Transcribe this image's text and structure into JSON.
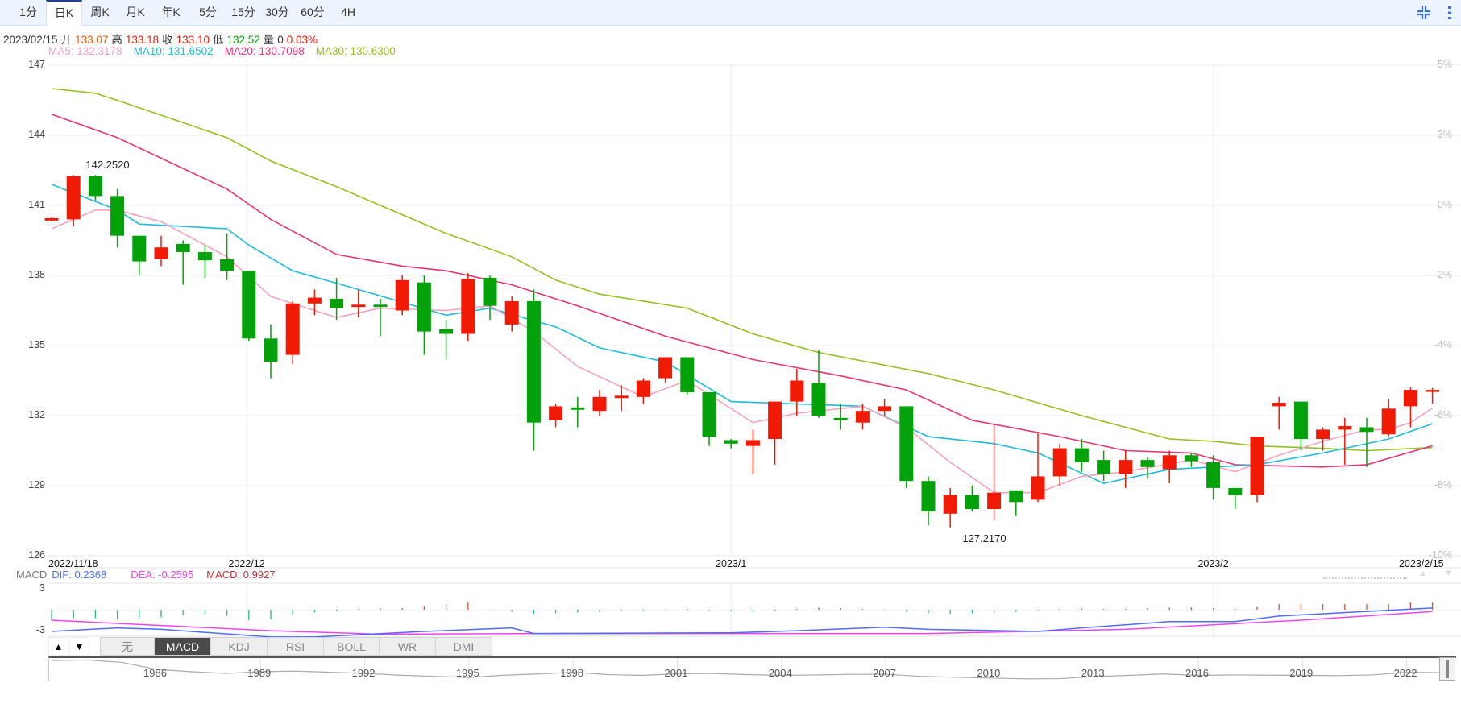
{
  "tabs": [
    "1分",
    "日K",
    "周K",
    "月K",
    "年K",
    "5分",
    "15分",
    "30分",
    "60分",
    "4H"
  ],
  "active_tab": "日K",
  "info": {
    "date": "2023/02/15",
    "open_label": "开",
    "open": "133.07",
    "high_label": "高",
    "high": "133.18",
    "close_label": "收",
    "close": "133.10",
    "low_label": "低",
    "low": "132.52",
    "volume_label": "量",
    "volume": "0",
    "change": "0.03%"
  },
  "ma_legend": {
    "ma5": "MA5: 132.3178",
    "ma10": "MA10: 131.6502",
    "ma20": "MA20: 130.7098",
    "ma30": "MA30: 130.6300"
  },
  "colors": {
    "up": "#f01a05",
    "down": "#04a20a",
    "ma5": "#f5a3bd",
    "ma10": "#1fbcd9",
    "ma20": "#e8356e",
    "ma30": "#94c11f",
    "dif": "#4f6bf7",
    "dea": "#ee44ee",
    "macd": "#c2303a",
    "open": "#f05a00"
  },
  "chart_data": {
    "type": "candlestick",
    "ylim": [
      126,
      147
    ],
    "y_ticks": [
      "147",
      "144",
      "141",
      "138",
      "135",
      "132",
      "129",
      "126"
    ],
    "pct_ticks": [
      "5%",
      "3%",
      "0%",
      "-2%",
      "-4%",
      "-6%",
      "-8%",
      "-10%"
    ],
    "x_labels": [
      "2022/11/18",
      "2022/12",
      "2023/1",
      "2023/2",
      "2023/2/15"
    ],
    "x_label_index": [
      0,
      8.9,
      31,
      53,
      63
    ],
    "annotations": [
      {
        "text": "142.2520",
        "index": 2,
        "value": 142.252
      },
      {
        "text": "127.2170",
        "index": 42,
        "value": 127.217
      }
    ],
    "candles": [
      [
        140.35,
        140.45,
        140.5,
        140.3
      ],
      [
        140.4,
        142.25,
        142.3,
        140.1
      ],
      [
        142.25,
        141.4,
        142.3,
        141.2
      ],
      [
        141.4,
        139.7,
        141.7,
        139.2
      ],
      [
        139.7,
        138.6,
        139.7,
        138.0
      ],
      [
        138.7,
        139.2,
        139.7,
        138.4
      ],
      [
        139.35,
        139.0,
        139.5,
        137.6
      ],
      [
        139.0,
        138.65,
        139.3,
        137.9
      ],
      [
        138.7,
        138.2,
        139.8,
        137.8
      ],
      [
        138.2,
        135.3,
        138.2,
        135.2
      ],
      [
        135.3,
        134.3,
        135.9,
        133.6
      ],
      [
        134.6,
        136.8,
        136.9,
        134.2
      ],
      [
        136.8,
        137.05,
        137.4,
        136.3
      ],
      [
        137.0,
        136.6,
        137.9,
        136.1
      ],
      [
        136.65,
        136.75,
        137.4,
        136.2
      ],
      [
        136.75,
        136.65,
        137.0,
        135.4
      ],
      [
        136.5,
        137.8,
        138.0,
        136.3
      ],
      [
        137.7,
        135.6,
        138.0,
        134.6
      ],
      [
        135.7,
        135.5,
        136.1,
        134.4
      ],
      [
        135.5,
        137.85,
        138.1,
        135.2
      ],
      [
        137.9,
        136.7,
        138.0,
        136.1
      ],
      [
        135.9,
        136.9,
        137.1,
        135.6
      ],
      [
        136.9,
        131.7,
        137.4,
        130.5
      ],
      [
        131.8,
        132.4,
        132.5,
        131.5
      ],
      [
        132.35,
        132.25,
        132.8,
        131.5
      ],
      [
        132.2,
        132.8,
        133.1,
        132.0
      ],
      [
        132.75,
        132.85,
        133.3,
        132.2
      ],
      [
        132.8,
        133.5,
        133.6,
        132.5
      ],
      [
        133.6,
        134.5,
        134.5,
        133.4
      ],
      [
        134.5,
        133.0,
        134.5,
        132.9
      ],
      [
        133.0,
        131.1,
        133.0,
        130.7
      ],
      [
        130.95,
        130.8,
        131.0,
        130.6
      ],
      [
        130.7,
        130.95,
        131.4,
        129.5
      ],
      [
        131.0,
        132.6,
        132.6,
        129.9
      ],
      [
        132.6,
        133.5,
        134.0,
        132.0
      ],
      [
        133.4,
        132.0,
        134.8,
        131.9
      ],
      [
        131.9,
        131.8,
        132.5,
        131.4
      ],
      [
        131.7,
        132.2,
        132.5,
        131.4
      ],
      [
        132.2,
        132.4,
        132.7,
        132.0
      ],
      [
        132.4,
        129.2,
        132.4,
        128.9
      ],
      [
        129.2,
        127.9,
        129.4,
        127.3
      ],
      [
        127.8,
        128.6,
        128.9,
        127.217
      ],
      [
        128.6,
        128.0,
        129.0,
        127.9
      ],
      [
        128.0,
        128.7,
        131.6,
        127.5
      ],
      [
        128.8,
        128.3,
        128.8,
        127.7
      ],
      [
        128.4,
        129.4,
        131.3,
        128.3
      ],
      [
        129.4,
        130.6,
        130.8,
        129.0
      ],
      [
        130.6,
        130.0,
        131.0,
        129.6
      ],
      [
        130.1,
        129.5,
        130.5,
        129.2
      ],
      [
        129.5,
        130.1,
        130.5,
        128.9
      ],
      [
        130.1,
        129.8,
        130.2,
        129.3
      ],
      [
        129.7,
        130.3,
        130.5,
        129.1
      ],
      [
        130.3,
        130.05,
        130.4,
        129.8
      ],
      [
        130.0,
        128.9,
        130.3,
        128.4
      ],
      [
        128.9,
        128.6,
        128.9,
        128.0
      ],
      [
        128.6,
        131.1,
        131.1,
        128.3
      ],
      [
        132.4,
        132.55,
        132.8,
        131.4
      ],
      [
        132.6,
        131.0,
        132.6,
        130.5
      ],
      [
        131.0,
        131.4,
        131.5,
        130.5
      ],
      [
        131.4,
        131.55,
        131.9,
        129.9
      ],
      [
        131.5,
        131.3,
        131.9,
        129.8
      ],
      [
        131.2,
        132.3,
        132.7,
        131.1
      ],
      [
        132.4,
        133.1,
        133.2,
        131.5
      ],
      [
        133.07,
        133.1,
        133.18,
        132.52
      ]
    ],
    "ma5": [
      [
        0,
        140.0
      ],
      [
        2,
        140.8
      ],
      [
        3,
        140.8
      ],
      [
        5,
        140.3
      ],
      [
        8,
        138.8
      ],
      [
        10,
        137.1
      ],
      [
        13,
        136.2
      ],
      [
        15,
        136.6
      ],
      [
        18,
        136.5
      ],
      [
        20,
        136.7
      ],
      [
        22,
        135.6
      ],
      [
        24,
        134.1
      ],
      [
        27,
        132.8
      ],
      [
        29,
        133.5
      ],
      [
        32,
        131.7
      ],
      [
        34,
        132.1
      ],
      [
        37,
        132.4
      ],
      [
        39,
        131.5
      ],
      [
        41,
        130.0
      ],
      [
        43,
        128.7
      ],
      [
        45,
        128.7
      ],
      [
        47,
        129.4
      ],
      [
        49,
        129.6
      ],
      [
        52,
        130.1
      ],
      [
        54,
        129.6
      ],
      [
        56,
        130.3
      ],
      [
        58,
        130.9
      ],
      [
        60,
        131.4
      ],
      [
        61,
        131.4
      ],
      [
        62,
        131.7
      ],
      [
        63,
        132.32
      ]
    ],
    "ma10": [
      [
        0,
        141.9
      ],
      [
        3,
        140.8
      ],
      [
        4,
        140.2
      ],
      [
        8,
        140.0
      ],
      [
        9,
        139.3
      ],
      [
        11,
        138.2
      ],
      [
        14,
        137.4
      ],
      [
        18,
        136.3
      ],
      [
        20,
        136.6
      ],
      [
        23,
        135.8
      ],
      [
        25,
        134.9
      ],
      [
        28,
        134.3
      ],
      [
        31,
        132.6
      ],
      [
        34,
        132.5
      ],
      [
        37,
        132.4
      ],
      [
        40,
        131.1
      ],
      [
        43,
        130.8
      ],
      [
        45,
        130.4
      ],
      [
        48,
        129.1
      ],
      [
        51,
        129.7
      ],
      [
        55,
        129.9
      ],
      [
        58,
        130.4
      ],
      [
        61,
        131.0
      ],
      [
        63,
        131.65
      ]
    ],
    "ma20": [
      [
        0,
        144.9
      ],
      [
        3,
        143.9
      ],
      [
        8,
        141.7
      ],
      [
        10,
        140.4
      ],
      [
        13,
        138.9
      ],
      [
        16,
        138.4
      ],
      [
        18,
        138.2
      ],
      [
        21,
        137.6
      ],
      [
        24,
        136.7
      ],
      [
        28,
        135.4
      ],
      [
        32,
        134.4
      ],
      [
        36,
        133.7
      ],
      [
        39,
        133.1
      ],
      [
        42,
        131.8
      ],
      [
        46,
        131.1
      ],
      [
        49,
        130.5
      ],
      [
        52,
        130.4
      ],
      [
        54,
        129.9
      ],
      [
        58,
        129.8
      ],
      [
        60,
        129.9
      ],
      [
        63,
        130.71
      ]
    ],
    "ma30": [
      [
        0,
        146.0
      ],
      [
        2,
        145.8
      ],
      [
        3,
        145.5
      ],
      [
        8,
        143.9
      ],
      [
        10,
        142.9
      ],
      [
        13,
        141.8
      ],
      [
        16,
        140.6
      ],
      [
        18,
        139.8
      ],
      [
        21,
        138.8
      ],
      [
        23,
        137.8
      ],
      [
        25,
        137.2
      ],
      [
        29,
        136.6
      ],
      [
        32,
        135.5
      ],
      [
        35,
        134.7
      ],
      [
        40,
        133.8
      ],
      [
        43,
        133.1
      ],
      [
        47,
        132.0
      ],
      [
        51,
        131.0
      ],
      [
        53,
        130.9
      ],
      [
        55,
        130.7
      ],
      [
        58,
        130.6
      ],
      [
        60,
        130.5
      ],
      [
        63,
        130.63
      ]
    ]
  },
  "macd": {
    "label": "MACD",
    "dif_text": "DIF: 0.2368",
    "dea_text": "DEA: -0.2595",
    "macd_text": "MACD: 0.9927",
    "y_ticks": [
      "3",
      "-3"
    ],
    "ylim": [
      -3.8,
      3.8
    ],
    "hist": [
      -1.5,
      -1.2,
      -1.2,
      -1.4,
      -1.2,
      -1.1,
      -0.8,
      -0.7,
      -0.9,
      -1.5,
      -1.4,
      -0.7,
      -0.4,
      -0.2,
      0.1,
      0.2,
      0.2,
      0.5,
      0.8,
      1.0,
      -0.05,
      -0.3,
      -0.6,
      -0.5,
      -0.4,
      -0.3,
      -0.2,
      -0.1,
      0.05,
      0.1,
      -0.1,
      -0.2,
      -0.3,
      -0.2,
      0.1,
      0.3,
      0.2,
      0.1,
      0.05,
      -0.3,
      -0.5,
      -0.6,
      -0.5,
      -0.4,
      -0.3,
      -0.1,
      0.1,
      0.15,
      0.1,
      0.1,
      0.2,
      0.3,
      0.3,
      0.2,
      0.1,
      0.4,
      0.8,
      0.8,
      0.8,
      0.8,
      0.8,
      0.8,
      1.0,
      1.0
    ],
    "dif": [
      [
        0,
        -3.1
      ],
      [
        3,
        -2.6
      ],
      [
        5,
        -2.8
      ],
      [
        10,
        -3.9
      ],
      [
        12,
        -3.9
      ],
      [
        17,
        -3.1
      ],
      [
        21,
        -2.6
      ],
      [
        22,
        -3.4
      ],
      [
        31,
        -3.3
      ],
      [
        34,
        -3.0
      ],
      [
        38,
        -2.5
      ],
      [
        40,
        -2.8
      ],
      [
        45,
        -3.1
      ],
      [
        47,
        -2.6
      ],
      [
        51,
        -1.7
      ],
      [
        54,
        -1.7
      ],
      [
        56,
        -0.9
      ],
      [
        63,
        0.24
      ]
    ],
    "dea": [
      [
        0,
        -1.5
      ],
      [
        6,
        -2.4
      ],
      [
        10,
        -3.0
      ],
      [
        15,
        -3.5
      ],
      [
        23,
        -3.4
      ],
      [
        32,
        -3.4
      ],
      [
        40,
        -3.4
      ],
      [
        49,
        -2.8
      ],
      [
        57,
        -1.5
      ],
      [
        63,
        -0.26
      ]
    ]
  },
  "indicators": {
    "up_arrow": "▲",
    "down_arrow": "▼",
    "items": [
      "无",
      "MACD",
      "KDJ",
      "RSI",
      "BOLL",
      "WR",
      "DMI"
    ],
    "active": "MACD"
  },
  "navigator": {
    "years": [
      "1986",
      "1989",
      "1992",
      "1995",
      "1998",
      "2001",
      "2004",
      "2007",
      "2010",
      "2013",
      "2016",
      "2019",
      "2022"
    ],
    "series_start_year": 1983,
    "series": [
      235,
      240,
      220,
      160,
      140,
      125,
      140,
      145,
      135,
      125,
      110,
      100,
      90,
      110,
      120,
      135,
      115,
      108,
      122,
      125,
      115,
      108,
      112,
      117,
      118,
      100,
      92,
      85,
      78,
      80,
      98,
      108,
      120,
      108,
      112,
      110,
      109,
      106,
      112,
      135,
      132
    ]
  }
}
